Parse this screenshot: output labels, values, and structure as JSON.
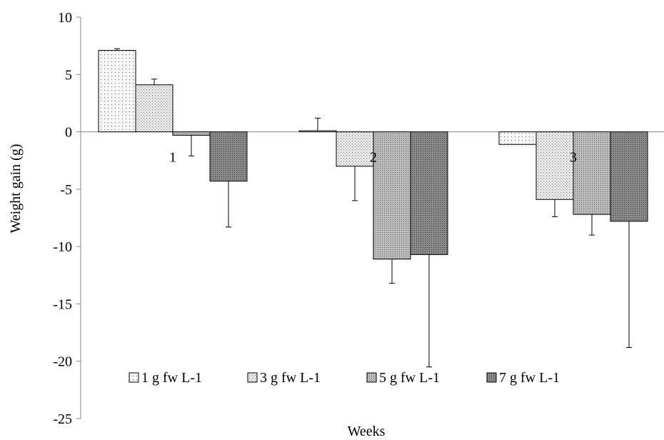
{
  "chart_data": {
    "type": "bar",
    "xlabel": "Weeks",
    "ylabel": "Weight gain (g)",
    "categories": [
      "1",
      "2",
      "3"
    ],
    "ylim": [
      -25,
      10
    ],
    "yticks": [
      10,
      5,
      0,
      -5,
      -10,
      -15,
      -20,
      -25
    ],
    "ytick_labels": [
      "10",
      "5",
      "0",
      "-5",
      "-10",
      "-15",
      "-20",
      "-25"
    ],
    "grid": false,
    "legend_position": "bottom-inside",
    "series": [
      {
        "name": "1 g fw L-1",
        "values": [
          7.1,
          0.1,
          -1.1
        ],
        "errors": [
          0.15,
          1.1,
          0.0
        ],
        "fill": "#f3f3f3",
        "pattern": "sparse-dots"
      },
      {
        "name": "3 g fw L-1",
        "values": [
          4.1,
          -3.0,
          -5.9
        ],
        "errors": [
          0.5,
          3.0,
          1.5
        ],
        "fill": "#e8e8e8",
        "pattern": "dense-dots"
      },
      {
        "name": "5 g fw L-1",
        "values": [
          -0.3,
          -11.1,
          -7.2
        ],
        "errors": [
          1.8,
          2.1,
          1.8
        ],
        "fill": "#c4c4c4",
        "pattern": "dark-dots"
      },
      {
        "name": "7 g fw L-1",
        "values": [
          -4.3,
          -10.7,
          -7.8
        ],
        "errors": [
          4.0,
          9.8,
          11.0
        ],
        "fill": "#8c8c8c",
        "pattern": "darkest-dots"
      }
    ]
  }
}
